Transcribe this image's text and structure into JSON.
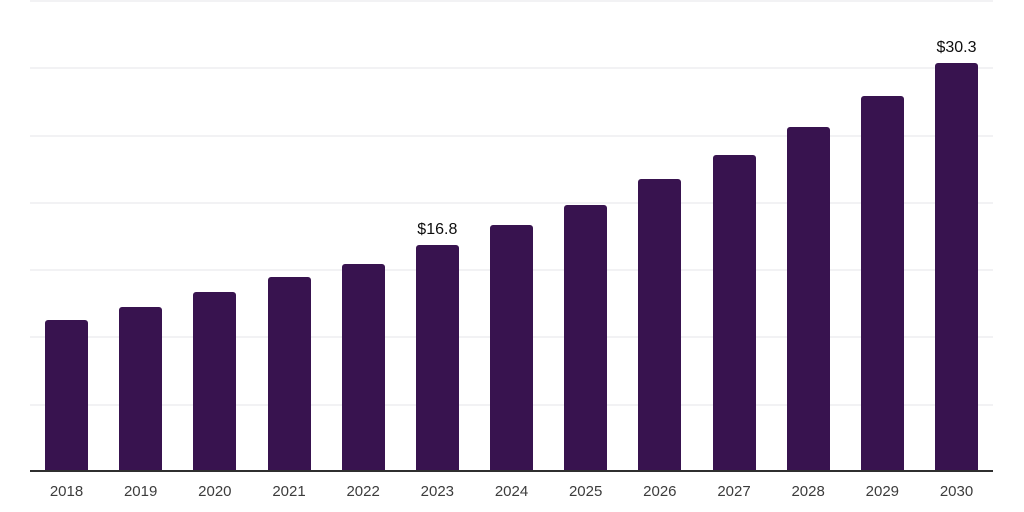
{
  "chart_data": {
    "type": "bar",
    "title": "",
    "xlabel": "",
    "ylabel": "",
    "categories": [
      "2018",
      "2019",
      "2020",
      "2021",
      "2022",
      "2023",
      "2024",
      "2025",
      "2026",
      "2027",
      "2028",
      "2029",
      "2030"
    ],
    "values": [
      11.2,
      12.2,
      13.3,
      14.4,
      15.4,
      16.8,
      18.3,
      19.8,
      21.7,
      23.5,
      25.6,
      27.9,
      30.3
    ],
    "data_labels": [
      {
        "index": 5,
        "text": "$16.8"
      },
      {
        "index": 12,
        "text": "$30.3"
      }
    ],
    "ylim": [
      0,
      35
    ],
    "gridline_step": 5,
    "grid": true,
    "legend_position": "none",
    "colors": {
      "bar": "#38134F",
      "axis_line": "#2f2f2f",
      "gridline": "#f2f2f4",
      "tick_label": "#3c3c3c",
      "data_label": "#0d0d0d",
      "background": "#ffffff"
    }
  }
}
